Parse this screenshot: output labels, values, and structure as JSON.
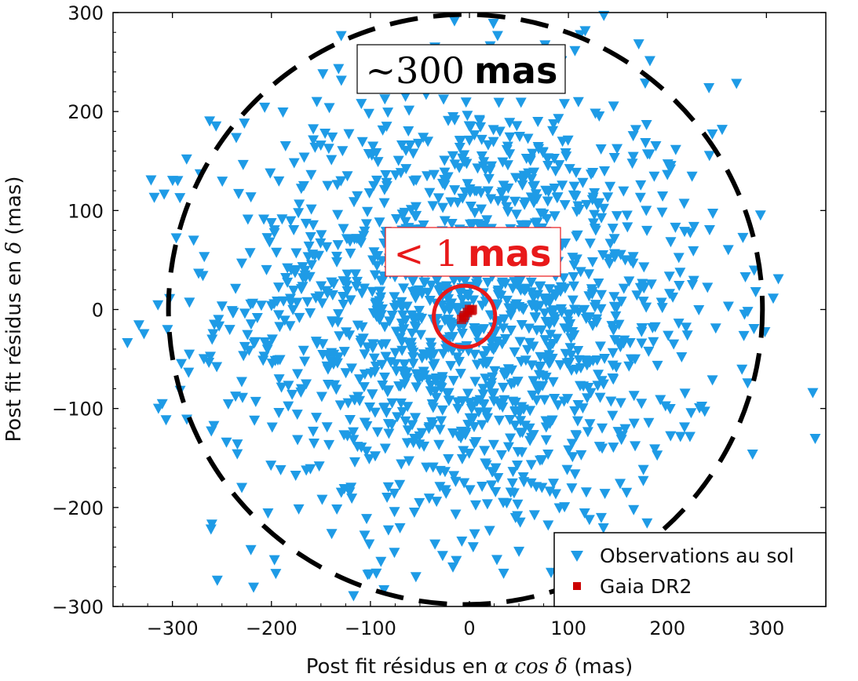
{
  "chart_data": {
    "type": "scatter",
    "xlabel_prefix": "Post fit résidus en ",
    "xlabel_math": "α cos δ",
    "xlabel_suffix": " (mas)",
    "ylabel_prefix": "Post fit résidus en ",
    "ylabel_math": "δ",
    "ylabel_suffix": " (mas)",
    "xlim": [
      -360,
      360
    ],
    "ylim": [
      -300,
      300
    ],
    "x_ticks": [
      -300,
      -200,
      -100,
      0,
      100,
      200,
      300
    ],
    "y_ticks": [
      -300,
      -200,
      -100,
      0,
      100,
      200,
      300
    ],
    "x_tick_labels": [
      "−300",
      "−200",
      "−100",
      "0",
      "100",
      "200",
      "300"
    ],
    "y_tick_labels": [
      "−300",
      "−200",
      "−100",
      "0",
      "100",
      "200",
      "300"
    ],
    "grid": false,
    "legend_position": "bottom-right",
    "series": [
      {
        "name": "Observations au sol",
        "marker": "triangle-down",
        "color": "#1e9be6",
        "n_points": 1500,
        "distribution_center": [
          0,
          0
        ],
        "distribution_sigma": [
          125,
          115
        ]
      },
      {
        "name": "Gaia DR2",
        "marker": "square",
        "color": "#cc0000",
        "points": [
          [
            -8,
            -10
          ],
          [
            -5,
            -6
          ],
          [
            -2,
            -3
          ],
          [
            2,
            -1
          ],
          [
            3,
            0
          ],
          [
            0,
            0
          ],
          [
            -6,
            -8
          ]
        ]
      }
    ],
    "annotations": [
      {
        "kind": "dashed-circle",
        "color": "#000000",
        "center": [
          -4,
          0
        ],
        "radius_x": 300,
        "radius_y": 298,
        "label_num": "~300",
        "label_unit": "mas",
        "label_color": "#000000"
      },
      {
        "kind": "solid-circle",
        "color": "#e8191a",
        "center": [
          -5,
          -7
        ],
        "radius_x": 31,
        "radius_y": 31,
        "label_num": "< 1",
        "label_unit": "mas",
        "label_color": "#e8191a"
      }
    ]
  }
}
